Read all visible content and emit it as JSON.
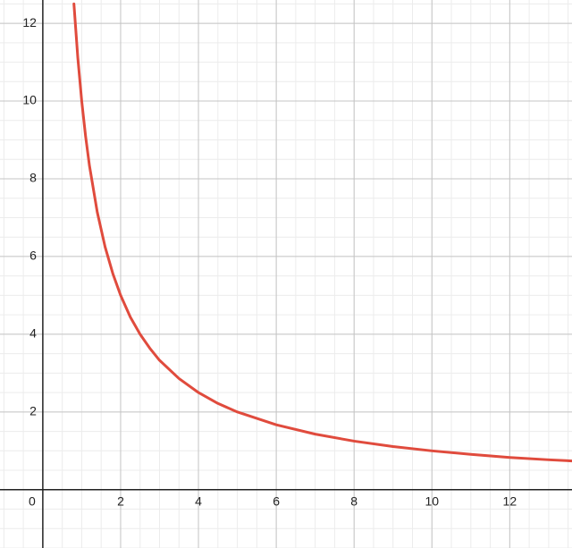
{
  "chart_data": {
    "type": "line",
    "x": [
      0.8,
      0.9,
      1,
      1.1,
      1.2,
      1.4,
      1.6,
      1.8,
      2,
      2.25,
      2.5,
      2.75,
      3,
      3.5,
      4,
      4.5,
      5,
      6,
      7,
      8,
      9,
      10,
      11,
      12,
      13,
      13.6
    ],
    "series": [
      {
        "color": "#e04b3d",
        "values": [
          12.5,
          11.11,
          10,
          9.09,
          8.33,
          7.14,
          6.25,
          5.56,
          5,
          4.44,
          4,
          3.64,
          3.33,
          2.86,
          2.5,
          2.22,
          2,
          1.67,
          1.43,
          1.25,
          1.11,
          1,
          0.91,
          0.83,
          0.77,
          0.74
        ]
      }
    ],
    "xlim": [
      -1.1,
      13.6
    ],
    "ylim": [
      -1.5,
      12.6
    ],
    "xticks": [
      0,
      2,
      4,
      6,
      8,
      10,
      12
    ],
    "yticks": [
      2,
      4,
      6,
      8,
      10,
      12
    ],
    "grid": true,
    "minor_step": 0.5
  }
}
